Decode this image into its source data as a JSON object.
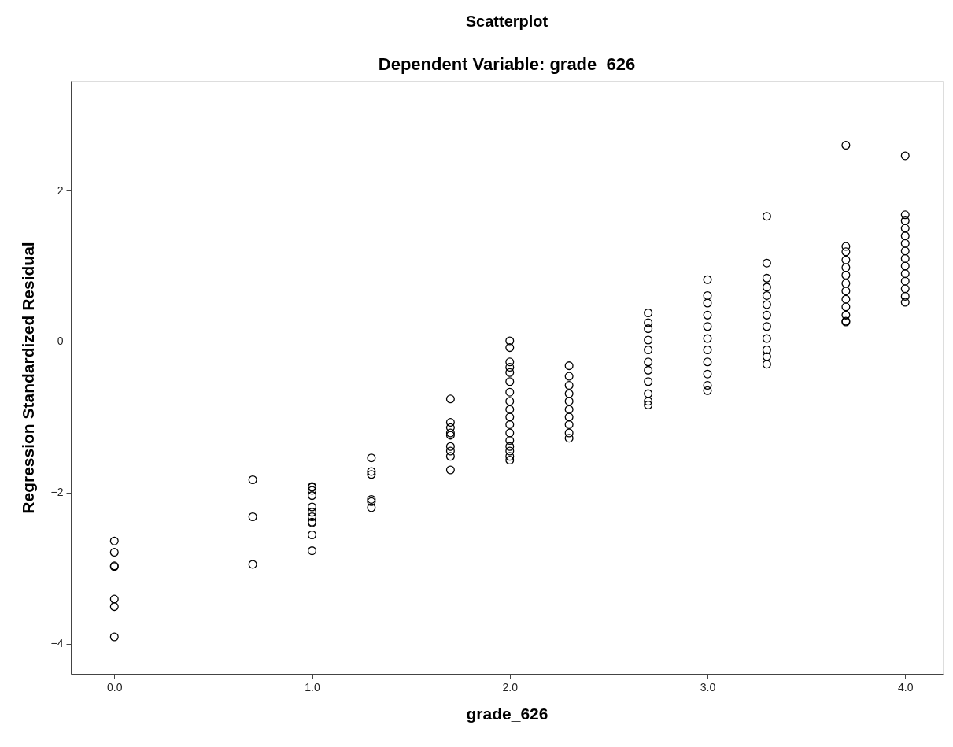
{
  "chart_data": {
    "type": "scatter",
    "title": "Scatterplot",
    "subtitle": "Dependent Variable: grade_626",
    "xlabel": "grade_626",
    "ylabel": "Regression Standardized Residual",
    "xlim": [
      -0.22,
      4.19
    ],
    "ylim": [
      -4.4,
      3.45
    ],
    "xticks": [
      {
        "value": 0,
        "label": "0.0"
      },
      {
        "value": 1,
        "label": "1.0"
      },
      {
        "value": 2,
        "label": "2.0"
      },
      {
        "value": 3,
        "label": "3.0"
      },
      {
        "value": 4,
        "label": "4.0"
      }
    ],
    "yticks": [
      -4,
      -2,
      0,
      2
    ],
    "grid": false,
    "legend": false,
    "marker": "circle",
    "series": [
      {
        "color": "#000000",
        "x": [
          0,
          0,
          0,
          0,
          0,
          0,
          0,
          0.7,
          0.7,
          0.7,
          1,
          1,
          1,
          1,
          1,
          1,
          1,
          1,
          1,
          1,
          1,
          1.3,
          1.3,
          1.3,
          1.3,
          1.3,
          1.3,
          1.7,
          1.7,
          1.7,
          1.7,
          1.7,
          1.7,
          1.7,
          1.7,
          1.7,
          2,
          2,
          2,
          2,
          2,
          2,
          2,
          2,
          2,
          2,
          2,
          2,
          2,
          2,
          2,
          2,
          2,
          2.3,
          2.3,
          2.3,
          2.3,
          2.3,
          2.3,
          2.3,
          2.3,
          2.3,
          2.3,
          2.7,
          2.7,
          2.7,
          2.7,
          2.7,
          2.7,
          2.7,
          2.7,
          2.7,
          2.7,
          2.7,
          3,
          3,
          3,
          3,
          3,
          3,
          3,
          3,
          3,
          3,
          3,
          3.3,
          3.3,
          3.3,
          3.3,
          3.3,
          3.3,
          3.3,
          3.3,
          3.3,
          3.3,
          3.3,
          3.3,
          3.7,
          3.7,
          3.7,
          3.7,
          3.7,
          3.7,
          3.7,
          3.7,
          3.7,
          3.7,
          3.7,
          3.7,
          3.7,
          4,
          4,
          4,
          4,
          4,
          4,
          4,
          4,
          4,
          4,
          4,
          4,
          4,
          4
        ],
        "values": [
          -2.64,
          -2.79,
          -2.97,
          -2.98,
          -3.41,
          -3.51,
          -3.91,
          -1.83,
          -2.32,
          -2.95,
          -1.92,
          -1.93,
          -1.97,
          -2.04,
          -2.19,
          -2.26,
          -2.32,
          -2.39,
          -2.4,
          -2.56,
          -2.77,
          -1.54,
          -1.72,
          -1.76,
          -2.09,
          -2.12,
          -2.2,
          -0.76,
          -1.07,
          -1.14,
          -1.21,
          -1.24,
          -1.39,
          -1.45,
          -1.52,
          -1.7,
          0.01,
          -0.08,
          -0.27,
          -0.34,
          -0.41,
          -0.53,
          -0.67,
          -0.79,
          -0.9,
          -1.0,
          -1.1,
          -1.21,
          -1.31,
          -1.39,
          -1.45,
          -1.52,
          -1.57,
          -0.32,
          -0.46,
          -0.58,
          -0.69,
          -0.79,
          -0.9,
          -1.0,
          -1.1,
          -1.21,
          -1.28,
          0.38,
          0.25,
          0.17,
          0.02,
          -0.11,
          -0.27,
          -0.38,
          -0.53,
          -0.69,
          -0.79,
          -0.84,
          0.82,
          0.61,
          0.51,
          0.35,
          0.2,
          0.04,
          -0.11,
          -0.27,
          -0.43,
          -0.58,
          -0.65,
          1.66,
          1.04,
          0.84,
          0.72,
          0.61,
          0.49,
          0.35,
          0.2,
          0.04,
          -0.11,
          -0.2,
          -0.3,
          2.6,
          1.26,
          1.19,
          1.08,
          0.98,
          0.88,
          0.77,
          0.67,
          0.56,
          0.46,
          0.35,
          0.27,
          0.26,
          2.46,
          1.68,
          1.6,
          1.5,
          1.4,
          1.3,
          1.2,
          1.1,
          1.0,
          0.9,
          0.8,
          0.7,
          0.6,
          0.52
        ]
      }
    ]
  }
}
